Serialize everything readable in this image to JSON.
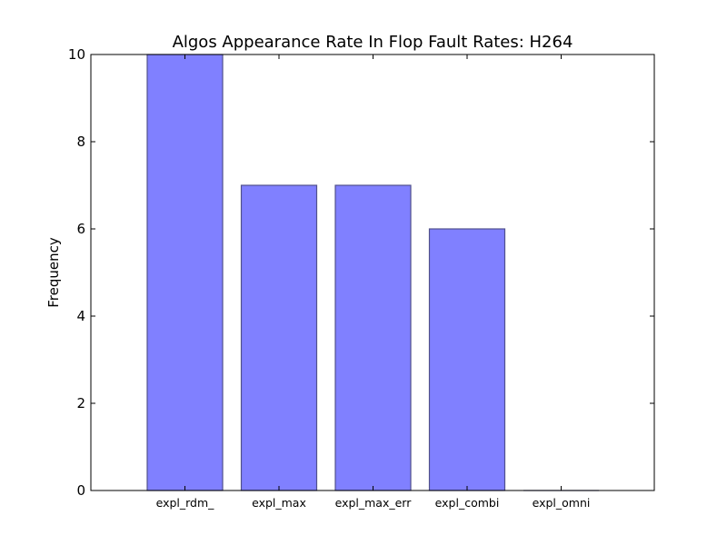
{
  "chart_data": {
    "type": "bar",
    "title": "Algos Appearance Rate In Flop Fault Rates: H264",
    "xlabel": "",
    "ylabel": "Frequency",
    "categories": [
      "expl_rdm_",
      "expl_max",
      "expl_max_err",
      "expl_combi",
      "expl_omni"
    ],
    "values": [
      10,
      7,
      7,
      6,
      0
    ],
    "ylim": [
      0,
      10
    ],
    "yticks": [
      "0",
      "2",
      "4",
      "6",
      "8",
      "10"
    ],
    "grid": false,
    "legend": "none",
    "bar_color": "#8080ff",
    "bar_edge_color": "#50508c"
  }
}
